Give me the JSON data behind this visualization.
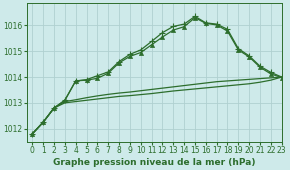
{
  "title": "Graphe pression niveau de la mer (hPa)",
  "background_color": "#ceeaea",
  "grid_color": "#b0d0d0",
  "line_color": "#2d6e2d",
  "xlim": [
    -0.5,
    23
  ],
  "ylim": [
    1011.5,
    1016.85
  ],
  "yticks": [
    1012,
    1013,
    1014,
    1015,
    1016
  ],
  "xticks": [
    0,
    1,
    2,
    3,
    4,
    5,
    6,
    7,
    8,
    9,
    10,
    11,
    12,
    13,
    14,
    15,
    16,
    17,
    18,
    19,
    20,
    21,
    22,
    23
  ],
  "y_main": [
    1011.8,
    1012.25,
    1012.8,
    1013.1,
    1013.85,
    1013.9,
    1014.05,
    1014.2,
    1014.6,
    1014.88,
    1015.05,
    1015.38,
    1015.72,
    1015.96,
    1016.05,
    1016.35,
    1016.1,
    1016.05,
    1015.85,
    1015.1,
    1014.82,
    1014.42,
    1014.18,
    1014.0
  ],
  "y_tri": [
    1011.8,
    1012.25,
    1012.8,
    1013.1,
    1013.85,
    1013.88,
    1013.95,
    1014.15,
    1014.55,
    1014.8,
    1014.95,
    1015.25,
    1015.55,
    1015.82,
    1015.95,
    1016.3,
    1016.08,
    1016.02,
    1015.78,
    1015.05,
    1014.78,
    1014.38,
    1014.12,
    1013.98
  ],
  "y_flat1": [
    1011.8,
    1012.25,
    1012.8,
    1013.05,
    1013.12,
    1013.2,
    1013.27,
    1013.33,
    1013.38,
    1013.42,
    1013.47,
    1013.52,
    1013.57,
    1013.62,
    1013.67,
    1013.72,
    1013.77,
    1013.82,
    1013.85,
    1013.88,
    1013.91,
    1013.94,
    1013.97,
    1014.0
  ],
  "y_flat2": [
    1011.8,
    1012.25,
    1012.8,
    1013.0,
    1013.05,
    1013.1,
    1013.15,
    1013.2,
    1013.25,
    1013.28,
    1013.32,
    1013.36,
    1013.41,
    1013.46,
    1013.5,
    1013.54,
    1013.58,
    1013.62,
    1013.66,
    1013.7,
    1013.74,
    1013.8,
    1013.88,
    1014.0
  ],
  "title_fontsize": 6.5,
  "tick_fontsize": 5.5,
  "lw": 0.9,
  "marker_size": 3.0
}
